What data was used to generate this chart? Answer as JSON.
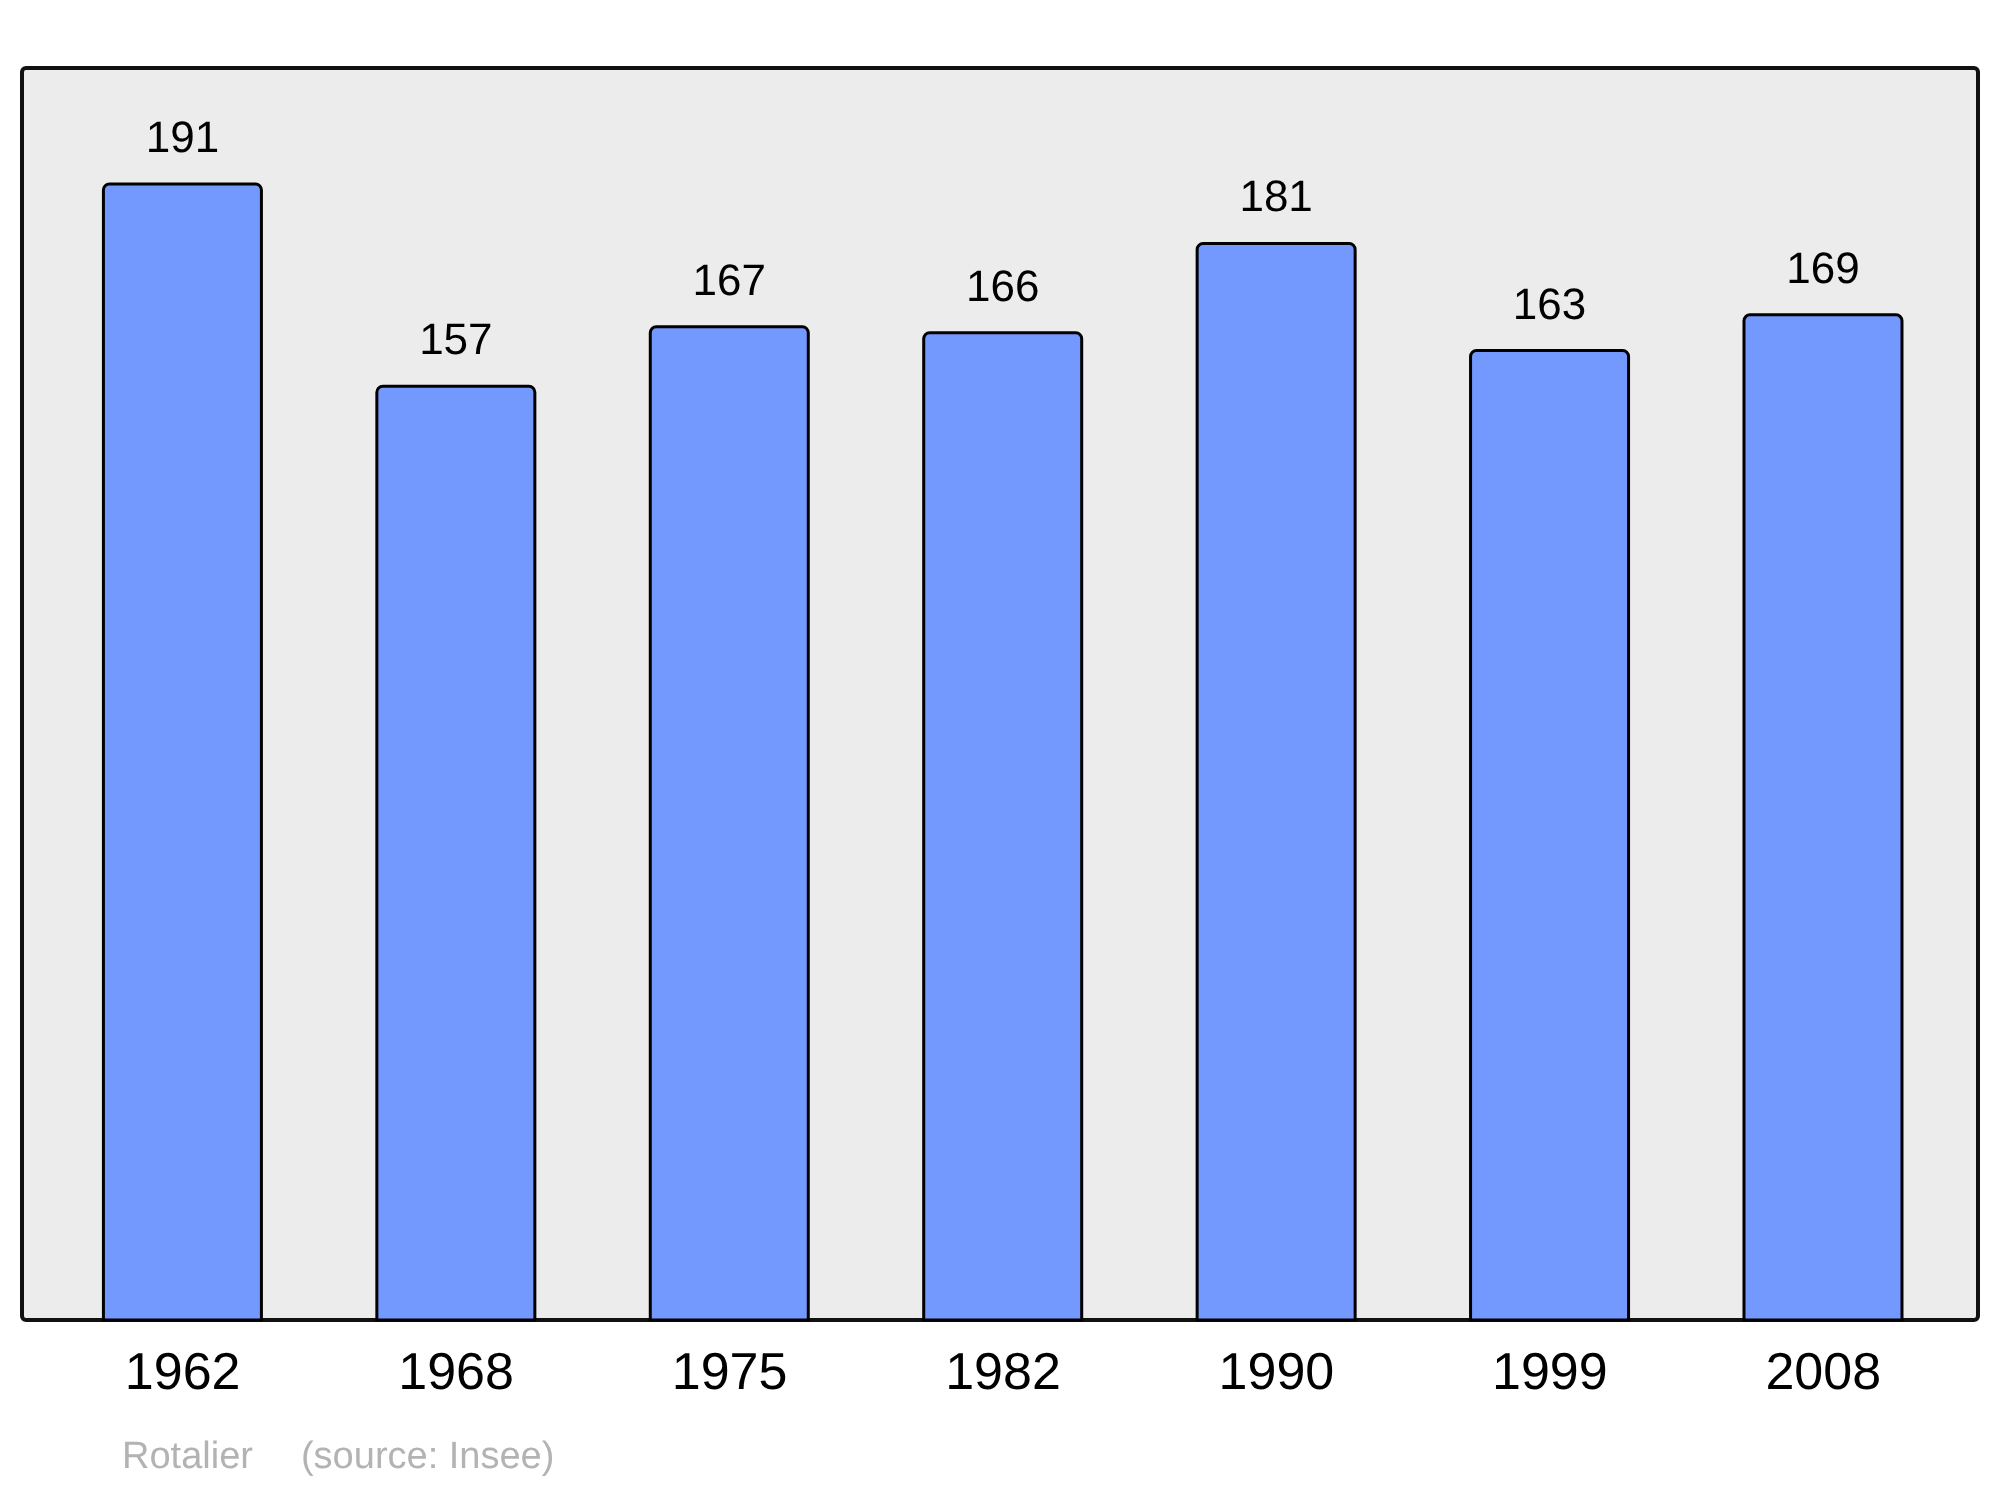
{
  "chart_data": {
    "type": "bar",
    "categories": [
      "1962",
      "1968",
      "1975",
      "1982",
      "1990",
      "1999",
      "2008"
    ],
    "values": [
      191,
      157,
      167,
      166,
      181,
      163,
      169
    ],
    "color": "#7399ff",
    "data_labels": true,
    "annotations": [
      "Rotalier",
      "(source: Insee)"
    ]
  }
}
